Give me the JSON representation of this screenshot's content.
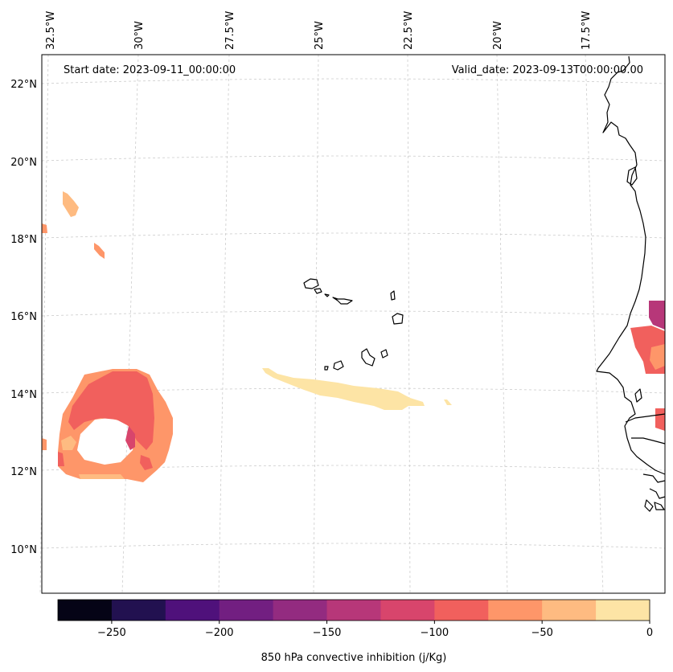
{
  "header": {
    "start_date": "Start date: 2023-09-11_00:00:00",
    "valid_date": "Valid_date: 2023-09-13T00:00:00.00"
  },
  "map": {
    "projection": "conic",
    "lon_labels": [
      "32.5°W",
      "30°W",
      "27.5°W",
      "25°W",
      "22.5°W",
      "20°W",
      "17.5°W"
    ],
    "lat_labels": [
      "22°N",
      "20°N",
      "18°N",
      "16°N",
      "14°N",
      "12°N",
      "10°N"
    ],
    "gridlines": "dashed light grey",
    "coastline_color": "#000000"
  },
  "colorbar": {
    "label": "850 hPa convective inhibition (j/Kg)",
    "ticks": [
      "−250",
      "−200",
      "−150",
      "−100",
      "−50",
      "0"
    ],
    "levels": [
      -275,
      -250,
      -225,
      -200,
      -175,
      -150,
      -125,
      -100,
      -75,
      -50,
      -25,
      0
    ],
    "colors": [
      "#050416",
      "#221150",
      "#4f117b",
      "#721f81",
      "#932b80",
      "#b73779",
      "#d8456c",
      "#f1605d",
      "#fe9669",
      "#febb81",
      "#fde4a5"
    ]
  },
  "fields": {
    "colors": {
      "near_zero": "#fde4a5",
      "minus_25_to_50": "#febb81",
      "minus_50_to_75": "#fe9669",
      "minus_75_to_100": "#f1605d",
      "minus_100_to_125": "#d8456c",
      "minus_125_to_150": "#b73779"
    }
  }
}
